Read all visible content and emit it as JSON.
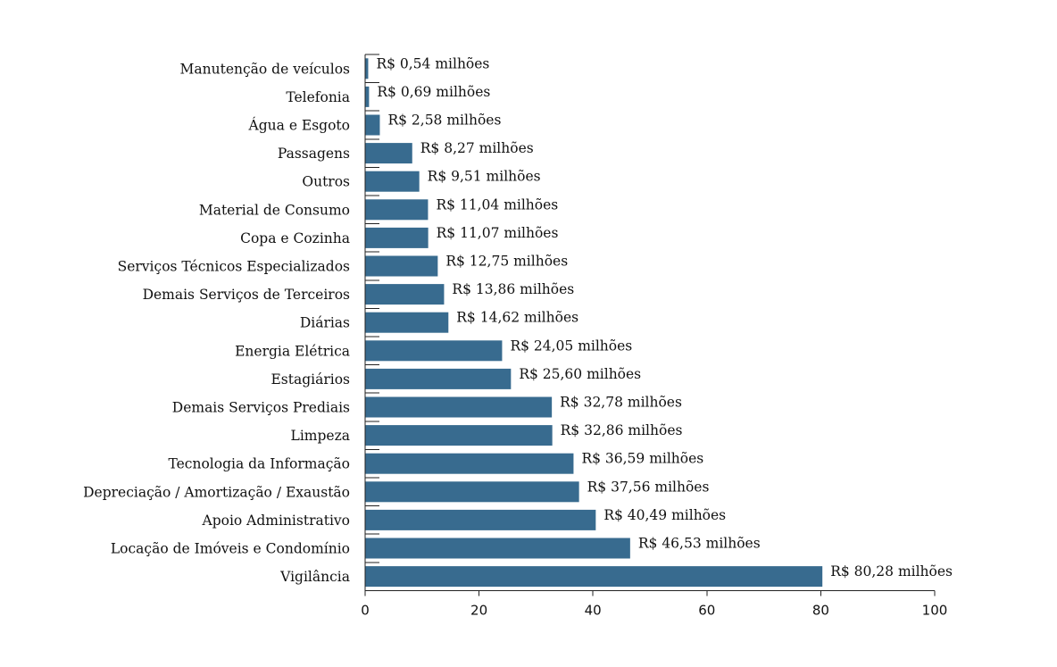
{
  "chart_data": {
    "type": "bar",
    "orientation": "horizontal",
    "title": "",
    "xlabel": "",
    "ylabel": "",
    "xlim": [
      0,
      100
    ],
    "xticks": [
      0,
      20,
      40,
      60,
      80,
      100
    ],
    "grid": false,
    "bar_color": "#386b8f",
    "categories": [
      "Manutenção de veículos",
      "Telefonia",
      "Água e Esgoto",
      "Passagens",
      "Outros",
      "Material de Consumo",
      "Copa e Cozinha",
      "Serviços Técnicos Especializados",
      "Demais Serviços de Terceiros",
      "Diárias",
      "Energia Elétrica",
      "Estagiários",
      "Demais Serviços Prediais",
      "Limpeza",
      "Tecnologia da Informação",
      "Depreciação / Amortização / Exaustão",
      "Apoio Administrativo",
      "Locação de Imóveis e Condomínio",
      "Vigilância"
    ],
    "values": [
      0.54,
      0.69,
      2.58,
      8.27,
      9.51,
      11.04,
      11.07,
      12.75,
      13.86,
      14.62,
      24.05,
      25.6,
      32.78,
      32.86,
      36.59,
      37.56,
      40.49,
      46.53,
      80.28
    ],
    "data_labels": [
      "R$ 0,54 milhões",
      "R$ 0,69 milhões",
      "R$ 2,58 milhões",
      "R$ 8,27 milhões",
      "R$ 9,51 milhões",
      "R$ 11,04 milhões",
      "R$ 11,07 milhões",
      "R$ 12,75 milhões",
      "R$ 13,86 milhões",
      "R$ 14,62 milhões",
      "R$ 24,05 milhões",
      "R$ 25,60 milhões",
      "R$ 32,78 milhões",
      "R$ 32,86 milhões",
      "R$ 36,59 milhões",
      "R$ 37,56 milhões",
      "R$ 40,49 milhões",
      "R$ 46,53 milhões",
      "R$ 80,28 milhões"
    ]
  }
}
